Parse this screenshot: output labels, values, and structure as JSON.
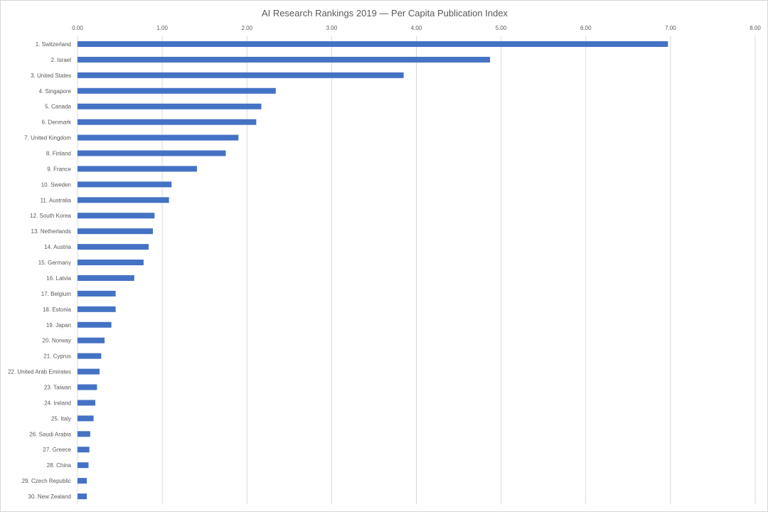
{
  "chart_data": {
    "type": "bar",
    "orientation": "horizontal",
    "title": "AI Research Rankings 2019 — Per Capita Publication Index",
    "xlabel": "",
    "ylabel": "",
    "xlim": [
      0,
      8
    ],
    "x_ticks": [
      "0.00",
      "1.00",
      "2.00",
      "3.00",
      "4.00",
      "5.00",
      "6.00",
      "7.00",
      "8.00"
    ],
    "x_axis_position": "top",
    "grid": true,
    "legend": "none",
    "bar_color": "#4472c4",
    "categories": [
      "1. Switzerland",
      "2. Israel",
      "3. United States",
      "4. Singapore",
      "5. Canada",
      "6. Denmark",
      "7. United Kingdom",
      "8. Finland",
      "9. France",
      "10. Sweden",
      "11. Australia",
      "12. South Korea",
      "13. Netherlands",
      "14. Austria",
      "15. Germany",
      "16. Latvia",
      "17. Belgium",
      "18. Estonia",
      "19. Japan",
      "20. Norway",
      "21. Cyprus",
      "22. United Arab Emirates",
      "23. Taiwan",
      "24. Ireland",
      "25. Italy",
      "26. Saudi Arabia",
      "27. Greece",
      "28. China",
      "29. Czech Republic",
      "30. New Zealand"
    ],
    "values": [
      6.97,
      4.87,
      3.85,
      2.34,
      2.17,
      2.11,
      1.9,
      1.75,
      1.41,
      1.11,
      1.08,
      0.91,
      0.89,
      0.84,
      0.78,
      0.67,
      0.45,
      0.45,
      0.4,
      0.32,
      0.28,
      0.26,
      0.23,
      0.21,
      0.19,
      0.15,
      0.14,
      0.13,
      0.11,
      0.11
    ]
  }
}
